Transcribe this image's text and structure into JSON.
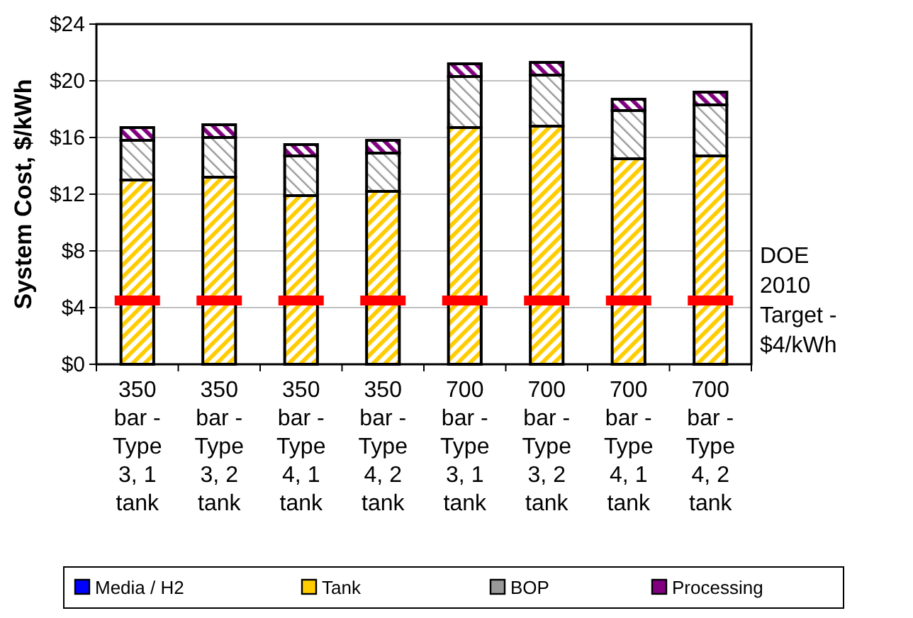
{
  "chart_data": {
    "type": "bar",
    "stacked": true,
    "ylabel": "System Cost, $/kWh",
    "categories": [
      "350 bar - Type 3, 1 tank",
      "350 bar - Type 3, 2 tank",
      "350 bar - Type 4, 1 tank",
      "350 bar - Type 4, 2 tank",
      "700 bar - Type 3, 1 tank",
      "700 bar - Type 3, 2 tank",
      "700 bar - Type 4, 1 tank",
      "700 bar - Type 4, 2 tank"
    ],
    "series": [
      {
        "name": "Media / H2",
        "color": "#0000ff",
        "values": [
          0,
          0,
          0,
          0,
          0,
          0,
          0,
          0
        ]
      },
      {
        "name": "Tank",
        "color": "#ffcc00",
        "values": [
          13.0,
          13.2,
          11.9,
          12.2,
          16.7,
          16.8,
          14.5,
          14.7
        ]
      },
      {
        "name": "BOP",
        "color": "#999999",
        "values": [
          2.8,
          2.8,
          2.8,
          2.7,
          3.6,
          3.6,
          3.4,
          3.6
        ]
      },
      {
        "name": "Processing",
        "color": "#800080",
        "values": [
          0.9,
          0.9,
          0.8,
          0.9,
          0.9,
          0.9,
          0.8,
          0.9
        ]
      }
    ],
    "ylim": [
      0,
      24
    ],
    "yticks": [
      {
        "value": 0,
        "label": "$0"
      },
      {
        "value": 4,
        "label": "$4"
      },
      {
        "value": 8,
        "label": "$8"
      },
      {
        "value": 12,
        "label": "$12"
      },
      {
        "value": 16,
        "label": "$16"
      },
      {
        "value": 20,
        "label": "$20"
      },
      {
        "value": 24,
        "label": "$24"
      }
    ],
    "grid": "y",
    "legend": "bottom",
    "ref_lines": [
      {
        "axis": "y",
        "value": 4.5,
        "label": "DOE 2010 Target - $4/kWh",
        "color": "#ff0000",
        "line_style": "dashed"
      }
    ]
  }
}
